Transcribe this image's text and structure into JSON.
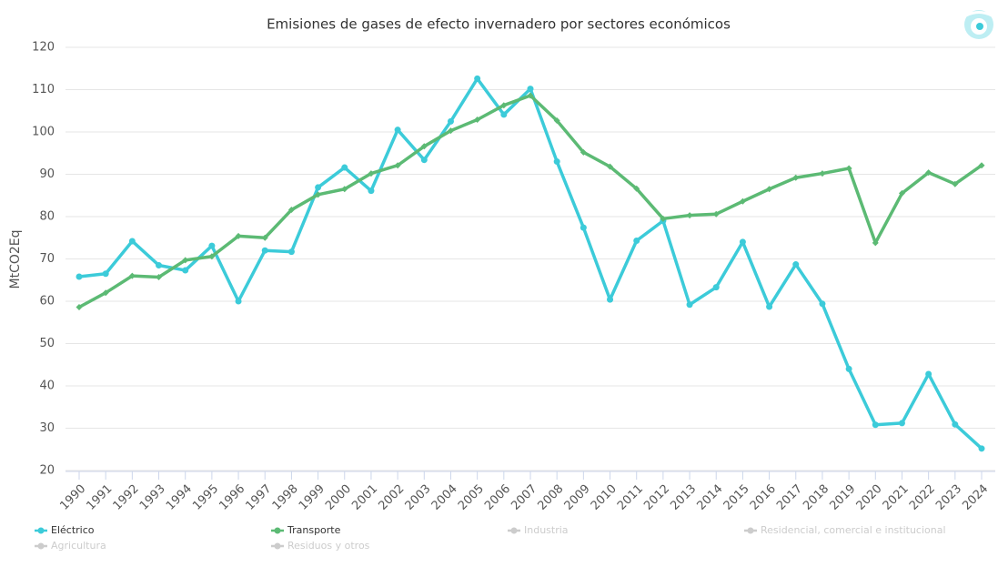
{
  "chart_data": {
    "type": "line",
    "title": "Emisiones de gases de efecto invernadero por sectores económicos",
    "y_label": "MtCO2Eq",
    "x": [
      1990,
      1991,
      1992,
      1993,
      1994,
      1995,
      1996,
      1997,
      1998,
      1999,
      2000,
      2001,
      2002,
      2003,
      2004,
      2005,
      2006,
      2007,
      2008,
      2009,
      2010,
      2011,
      2012,
      2013,
      2014,
      2015,
      2016,
      2017,
      2018,
      2019,
      2020,
      2021,
      2022,
      2023,
      2024
    ],
    "ylim": [
      20,
      120
    ],
    "yticks": [
      20,
      30,
      40,
      50,
      60,
      70,
      80,
      90,
      100,
      110,
      120
    ],
    "grid": true,
    "series": [
      {
        "name": "Eléctrico",
        "color": "#3ccbd9",
        "marker": "circle",
        "visible": true,
        "values": [
          65.8,
          66.5,
          74.2,
          68.5,
          67.3,
          73.1,
          60.0,
          72.0,
          71.7,
          86.9,
          91.6,
          86.1,
          100.5,
          93.4,
          102.5,
          112.6,
          104.1,
          110.2,
          93.0,
          77.4,
          60.4,
          74.3,
          79.0,
          59.2,
          63.3,
          74.0,
          58.7,
          68.7,
          59.4,
          44.0,
          30.8,
          31.2,
          42.8,
          30.9,
          25.2
        ]
      },
      {
        "name": "Transporte",
        "color": "#5cba74",
        "marker": "diamond",
        "visible": true,
        "values": [
          58.6,
          62.0,
          66.0,
          65.7,
          69.7,
          70.6,
          75.4,
          75.0,
          81.6,
          85.2,
          86.5,
          90.2,
          92.1,
          96.6,
          100.3,
          102.9,
          106.3,
          108.6,
          102.7,
          95.2,
          91.8,
          86.6,
          79.5,
          80.3,
          80.6,
          83.6,
          86.5,
          89.2,
          90.2,
          91.4,
          73.8,
          85.5,
          90.4,
          87.7,
          92.1
        ]
      },
      {
        "name": "Industria",
        "color": "#cccccc",
        "visible": false
      },
      {
        "name": "Residencial, comercial e institucional",
        "color": "#cccccc",
        "visible": false
      },
      {
        "name": "Agricultura",
        "color": "#cccccc",
        "visible": false
      },
      {
        "name": "Residuos y otros",
        "color": "#cccccc",
        "visible": false
      }
    ]
  }
}
